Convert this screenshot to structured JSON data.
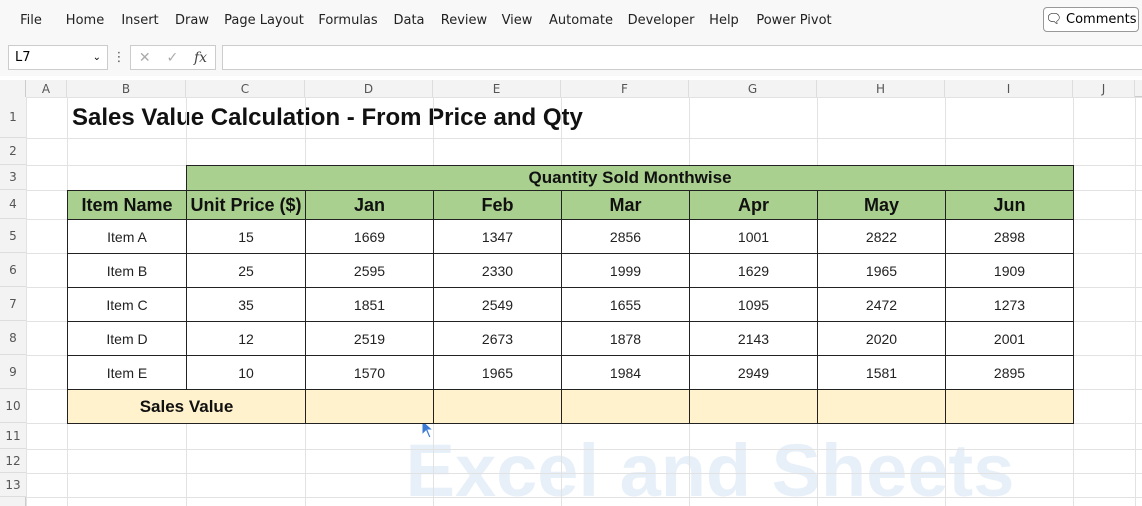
{
  "ribbon": {
    "tabs": [
      "File",
      "Home",
      "Insert",
      "Draw",
      "Page Layout",
      "Formulas",
      "Data",
      "Review",
      "View",
      "Automate",
      "Developer",
      "Help",
      "Power Pivot"
    ],
    "comments": "Comments"
  },
  "formula_bar": {
    "name_box": "L7",
    "fx": "fx"
  },
  "sheet": {
    "columns": [
      "A",
      "B",
      "C",
      "D",
      "E",
      "F",
      "G",
      "H",
      "I",
      "J"
    ],
    "rows": [
      1,
      2,
      3,
      4,
      5,
      6,
      7,
      8,
      9,
      10,
      11,
      12,
      13
    ]
  },
  "title": "Sales Value Calculation - From Price and Qty",
  "table": {
    "group_header": "Quantity Sold Monthwise",
    "headers": [
      "Item Name",
      "Unit Price ($)",
      "Jan",
      "Feb",
      "Mar",
      "Apr",
      "May",
      "Jun"
    ],
    "rows": [
      [
        "Item A",
        15,
        1669,
        1347,
        2856,
        1001,
        2822,
        2898
      ],
      [
        "Item B",
        25,
        2595,
        2330,
        1999,
        1629,
        1965,
        1909
      ],
      [
        "Item C",
        35,
        1851,
        2549,
        1655,
        1095,
        2472,
        1273
      ],
      [
        "Item D",
        12,
        2519,
        2673,
        1878,
        2143,
        2020,
        2001
      ],
      [
        "Item E",
        10,
        1570,
        1965,
        1984,
        2949,
        1581,
        2895
      ]
    ],
    "total_label": "Sales Value"
  },
  "watermark": "Excel and Sheets"
}
